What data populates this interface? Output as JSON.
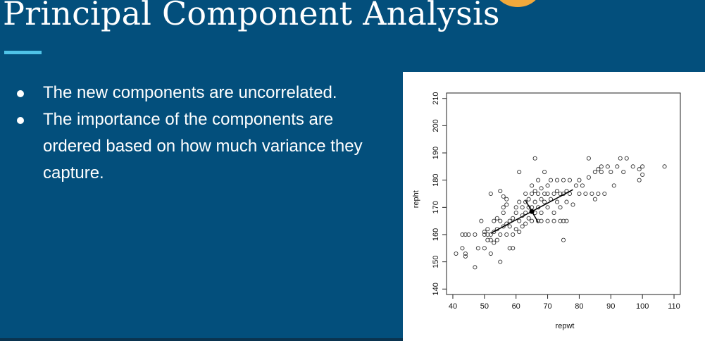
{
  "slide": {
    "title": "Principal Component Analysis",
    "bullets": [
      "The new components are uncorrelated.",
      "The importance of the components are ordered based on how much variance they capture."
    ]
  },
  "colors": {
    "background": "#034f7c",
    "accent_underline": "#4fc3e8",
    "corner_accent": "#f2a93b"
  },
  "chart_data": {
    "type": "scatter",
    "title": "",
    "xlabel": "repwt",
    "ylabel": "repht",
    "xlim": [
      38,
      112
    ],
    "ylim": [
      138,
      212
    ],
    "xticks": [
      40,
      50,
      60,
      70,
      80,
      90,
      100,
      110
    ],
    "yticks": [
      140,
      150,
      160,
      170,
      180,
      190,
      200,
      210
    ],
    "grid": false,
    "marker": "open-circle",
    "points": [
      [
        41,
        153
      ],
      [
        43,
        155
      ],
      [
        44,
        152
      ],
      [
        44,
        153
      ],
      [
        43,
        160
      ],
      [
        44,
        160
      ],
      [
        45,
        160
      ],
      [
        47,
        160
      ],
      [
        47,
        148
      ],
      [
        48,
        155
      ],
      [
        49,
        165
      ],
      [
        50,
        160
      ],
      [
        50,
        161
      ],
      [
        50,
        155
      ],
      [
        51,
        158
      ],
      [
        51,
        160
      ],
      [
        51,
        162
      ],
      [
        52,
        160
      ],
      [
        52,
        158
      ],
      [
        52,
        153
      ],
      [
        52,
        175
      ],
      [
        53,
        157
      ],
      [
        53,
        161
      ],
      [
        53,
        165
      ],
      [
        54,
        162
      ],
      [
        54,
        166
      ],
      [
        54,
        158
      ],
      [
        55,
        160
      ],
      [
        55,
        150
      ],
      [
        55,
        165
      ],
      [
        55,
        176
      ],
      [
        56,
        168
      ],
      [
        56,
        163
      ],
      [
        56,
        170
      ],
      [
        56,
        174
      ],
      [
        57,
        160
      ],
      [
        57,
        164
      ],
      [
        57,
        171
      ],
      [
        57,
        173
      ],
      [
        58,
        165
      ],
      [
        58,
        163
      ],
      [
        58,
        155
      ],
      [
        59,
        160
      ],
      [
        59,
        155
      ],
      [
        59,
        166
      ],
      [
        60,
        162
      ],
      [
        60,
        168
      ],
      [
        60,
        170
      ],
      [
        61,
        165
      ],
      [
        61,
        161
      ],
      [
        61,
        172
      ],
      [
        61,
        183
      ],
      [
        62,
        167
      ],
      [
        62,
        163
      ],
      [
        62,
        170
      ],
      [
        63,
        175
      ],
      [
        63,
        168
      ],
      [
        63,
        164
      ],
      [
        63,
        172
      ],
      [
        64,
        170
      ],
      [
        64,
        166
      ],
      [
        64,
        173
      ],
      [
        65,
        175
      ],
      [
        65,
        170
      ],
      [
        65,
        178
      ],
      [
        65,
        165
      ],
      [
        66,
        172
      ],
      [
        66,
        168
      ],
      [
        66,
        176
      ],
      [
        66,
        188
      ],
      [
        67,
        180
      ],
      [
        67,
        175
      ],
      [
        67,
        170
      ],
      [
        67,
        165
      ],
      [
        68,
        177
      ],
      [
        68,
        173
      ],
      [
        68,
        168
      ],
      [
        68,
        165
      ],
      [
        69,
        175
      ],
      [
        69,
        172
      ],
      [
        69,
        183
      ],
      [
        70,
        178
      ],
      [
        70,
        175
      ],
      [
        70,
        170
      ],
      [
        70,
        165
      ],
      [
        71,
        180
      ],
      [
        71,
        173
      ],
      [
        72,
        175
      ],
      [
        72,
        168
      ],
      [
        72,
        165
      ],
      [
        73,
        180
      ],
      [
        73,
        176
      ],
      [
        73,
        172
      ],
      [
        74,
        175
      ],
      [
        74,
        170
      ],
      [
        74,
        165
      ],
      [
        75,
        180
      ],
      [
        75,
        175
      ],
      [
        75,
        158
      ],
      [
        75,
        165
      ],
      [
        76,
        172
      ],
      [
        76,
        176
      ],
      [
        76,
        165
      ],
      [
        77,
        180
      ],
      [
        77,
        175
      ],
      [
        78,
        171
      ],
      [
        79,
        178
      ],
      [
        80,
        180
      ],
      [
        80,
        175
      ],
      [
        81,
        178
      ],
      [
        82,
        175
      ],
      [
        83,
        181
      ],
      [
        83,
        188
      ],
      [
        84,
        175
      ],
      [
        85,
        173
      ],
      [
        85,
        183
      ],
      [
        86,
        175
      ],
      [
        86,
        184
      ],
      [
        87,
        183
      ],
      [
        87,
        185
      ],
      [
        88,
        175
      ],
      [
        89,
        185
      ],
      [
        90,
        183
      ],
      [
        91,
        178
      ],
      [
        92,
        185
      ],
      [
        93,
        188
      ],
      [
        94,
        183
      ],
      [
        95,
        188
      ],
      [
        97,
        185
      ],
      [
        99,
        180
      ],
      [
        99,
        184
      ],
      [
        100,
        185
      ],
      [
        100,
        182
      ],
      [
        107,
        185
      ]
    ],
    "pca_axes": {
      "center": [
        65,
        168.5
      ],
      "pc1": [
        [
          52,
          160.5
        ],
        [
          78,
          176.5
        ]
      ],
      "pc2": [
        [
          63,
          172.5
        ],
        [
          67,
          164.5
        ]
      ]
    }
  }
}
